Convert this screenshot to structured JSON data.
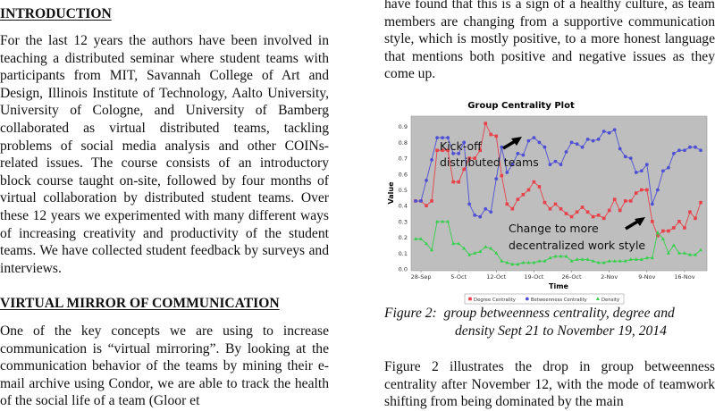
{
  "left_column": {
    "intro_heading": "INTRODUCTION",
    "intro_paragraph": "For the last 12 years the authors have been involved in teaching a distributed seminar where student teams with participants from MIT, Savannah College of Art and Design, Illinois Institute of Technology, Aalto University, University of Cologne, and University of Bamberg collaborated as virtual distributed teams, tackling problems of social media analysis and other COINs-related issues. The course consists of an introductory block course taught on-site, followed by four months of virtual collaboration by distributed student teams. Over these 12 years we experimented with many different ways of increasing creativity and productivity of the student teams. We have collected student feedback by surveys and interviews.",
    "mirror_heading": "VIRTUAL MIRROR OF COMMUNICATION",
    "mirror_paragraph": "One of the key concepts we are using to increase communication is “virtual mirroring”. By looking at the communication behavior of the teams by mining their e-mail archive using Condor, we are able to track the health of the social life of a team (Gloor et"
  },
  "right_column": {
    "top_paragraph": "have found that this is a sign of a healthy culture, as team members are changing from a supportive communication style, which is mostly positive, to a more honest language that mentions both positive and negative issues as they come up.",
    "caption_line1": "Figure 2:  group betweenness centrality, degree and",
    "caption_line2": "density Sept 21 to November 19, 2014",
    "bottom_paragraph": "Figure 2 illustrates the drop in group betweenness centrality after November 12, with the mode of teamwork shifting from being dominated by the main"
  },
  "chart_data": {
    "type": "line",
    "title": "Group Centrality Plot",
    "xlabel": "Time",
    "ylabel": "Value",
    "ylim": [
      0,
      0.95
    ],
    "grid": false,
    "legend_position": "bottom",
    "x_start": "27-Sep",
    "x_ticks": [
      "28-Sep",
      "5-Oct",
      "12-Oct",
      "19-Oct",
      "26-Oct",
      "2-Nov",
      "9-Nov",
      "16-Nov"
    ],
    "y_ticks": [
      "0.0",
      "0.1",
      "0.2",
      "0.3",
      "0.4",
      "0.5",
      "0.6",
      "0.7",
      "0.8",
      "0.9"
    ],
    "plot_background": "#bebebe",
    "series": [
      {
        "name": "Degree Centrality",
        "color": "#e8414a",
        "marker": "square",
        "values": [
          0.43,
          0.43,
          0.4,
          0.43,
          0.75,
          0.75,
          0.75,
          0.55,
          0.55,
          0.63,
          0.7,
          0.7,
          0.75,
          0.92,
          0.85,
          0.84,
          0.59,
          0.41,
          0.38,
          0.44,
          0.47,
          0.5,
          0.55,
          0.52,
          0.42,
          0.38,
          0.41,
          0.38,
          0.35,
          0.33,
          0.36,
          0.39,
          0.36,
          0.33,
          0.34,
          0.32,
          0.37,
          0.44,
          0.37,
          0.43,
          0.43,
          0.48,
          0.5,
          0.5,
          0.3,
          0.21,
          0.24,
          0.24,
          0.26,
          0.3,
          0.26,
          0.36,
          0.32,
          0.42
        ]
      },
      {
        "name": "Betweenness Centrality",
        "color": "#4f4fd6",
        "marker": "circle",
        "values": [
          0.43,
          0.43,
          0.56,
          0.69,
          0.83,
          0.83,
          0.83,
          0.73,
          0.73,
          0.8,
          0.41,
          0.34,
          0.33,
          0.38,
          0.36,
          0.57,
          0.77,
          0.61,
          0.66,
          0.73,
          0.72,
          0.81,
          0.83,
          0.8,
          0.77,
          0.66,
          0.68,
          0.66,
          0.74,
          0.8,
          0.79,
          0.77,
          0.82,
          0.81,
          0.82,
          0.87,
          0.86,
          0.88,
          0.76,
          0.71,
          0.7,
          0.61,
          0.62,
          0.66,
          0.41,
          0.5,
          0.62,
          0.64,
          0.73,
          0.75,
          0.75,
          0.77,
          0.77,
          0.75
        ]
      },
      {
        "name": "Density",
        "color": "#33d04a",
        "marker": "triangle",
        "values": [
          0.19,
          0.19,
          0.16,
          0.12,
          0.3,
          0.3,
          0.3,
          0.16,
          0.16,
          0.13,
          0.09,
          0.1,
          0.11,
          0.14,
          0.13,
          0.1,
          0.05,
          0.04,
          0.03,
          0.03,
          0.04,
          0.04,
          0.04,
          0.05,
          0.05,
          0.07,
          0.08,
          0.08,
          0.08,
          0.05,
          0.06,
          0.06,
          0.06,
          0.05,
          0.04,
          0.04,
          0.05,
          0.05,
          0.05,
          0.05,
          0.06,
          0.06,
          0.06,
          0.07,
          0.07,
          0.23,
          0.19,
          0.1,
          0.15,
          0.1,
          0.1,
          0.09,
          0.09,
          0.12
        ]
      }
    ],
    "annotations": [
      "Kick-off distributed teams",
      "Change to more decentralized work style"
    ],
    "annotation_lines": [
      [
        "Kick-off",
        "distributed teams"
      ],
      [
        "Change to more",
        "decentralized work style"
      ]
    ]
  }
}
